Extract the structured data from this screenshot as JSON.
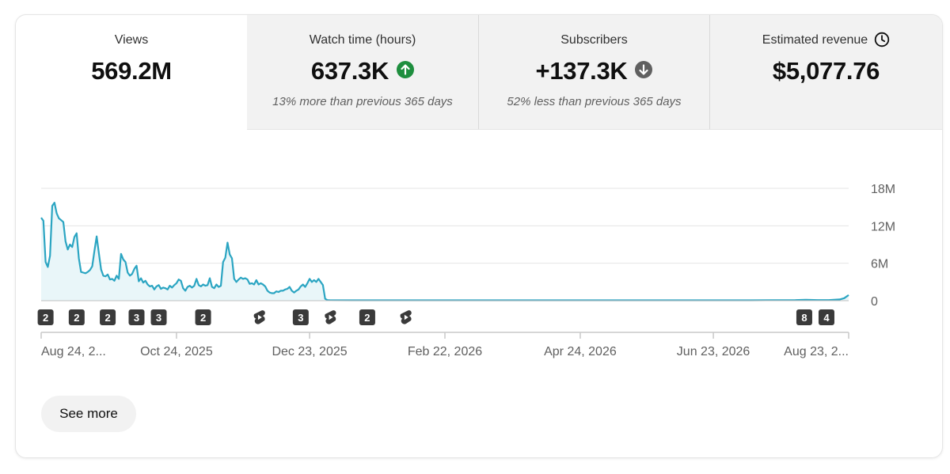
{
  "tabs": [
    {
      "label": "Views",
      "value": "569.2M",
      "subtext": "",
      "active": true
    },
    {
      "label": "Watch time (hours)",
      "value": "637.3K",
      "trend": "up",
      "subtext": "13% more than previous 365 days",
      "active": false
    },
    {
      "label": "Subscribers",
      "value": "+137.3K",
      "trend": "down",
      "subtext": "52% less than previous 365 days",
      "active": false
    },
    {
      "label": "Estimated revenue",
      "value": "$5,077.76",
      "subtext": "",
      "icon": "clock-icon",
      "active": false
    }
  ],
  "colors": {
    "line": "#2ba5c2",
    "area": "#e9f6f9",
    "trend_up": "#1e8e3e",
    "trend_down": "#606060",
    "marker_bg": "#3a3a3a",
    "grid": "#e5e5e5",
    "axis": "#c8c8c8",
    "axis_text": "#606060"
  },
  "chart_data": {
    "type": "area",
    "metric": "Views",
    "y_ticks": [
      "18M",
      "12M",
      "6M",
      "0"
    ],
    "y_tick_values": [
      18,
      12,
      6,
      0
    ],
    "ylim": [
      0,
      18
    ],
    "y_unit": "M",
    "x_tick_labels": [
      "Aug 24, 2...",
      "Oct 24, 2025",
      "Dec 23, 2025",
      "Feb 22, 2026",
      "Apr 24, 2026",
      "Jun 23, 2026",
      "Aug 23, 2..."
    ],
    "x_range_days": [
      0,
      364
    ],
    "x_tick_days": [
      0,
      61,
      121,
      182,
      243,
      303,
      364
    ],
    "series": [
      {
        "x": [
          0,
          1,
          2,
          3,
          4,
          5,
          6,
          7,
          8,
          9,
          10,
          11,
          12,
          13,
          14,
          15,
          16,
          17,
          18,
          19,
          20,
          21,
          22,
          23,
          24,
          25,
          26,
          27,
          28,
          29,
          30,
          31,
          32,
          33,
          34,
          35,
          36,
          37,
          38,
          39,
          40,
          41,
          42,
          43,
          44,
          45,
          46,
          47,
          48,
          49,
          50,
          51,
          52,
          53,
          54,
          55,
          56,
          57,
          58,
          59,
          60,
          61,
          62,
          63,
          64,
          65,
          66,
          67,
          68,
          69,
          70,
          71,
          72,
          73,
          74,
          75,
          76,
          77,
          78,
          79,
          80,
          81,
          82,
          83,
          84,
          85,
          86,
          87,
          88,
          89,
          90,
          91,
          92,
          93,
          94,
          95,
          96,
          97,
          98,
          99,
          100,
          101,
          102,
          103,
          104,
          105,
          106,
          107,
          108,
          109,
          110,
          111,
          112,
          113,
          114,
          115,
          116,
          117,
          118,
          119,
          120,
          121,
          122,
          123,
          124,
          125,
          126,
          127,
          128,
          129,
          130,
          140,
          160,
          180,
          200,
          220,
          240,
          260,
          280,
          300,
          320,
          340,
          345,
          350,
          355,
          360,
          362,
          364
        ],
        "y": [
          13.3,
          12.8,
          6.2,
          5.4,
          7.2,
          15.2,
          15.7,
          14.0,
          13.2,
          12.9,
          12.6,
          9.5,
          8.2,
          9.0,
          8.6,
          10.2,
          10.8,
          6.8,
          4.6,
          4.5,
          4.4,
          4.6,
          4.9,
          5.5,
          8.0,
          10.3,
          7.6,
          5.0,
          4.0,
          3.9,
          4.2,
          3.4,
          3.5,
          3.2,
          4.0,
          3.5,
          7.5,
          6.6,
          6.2,
          4.5,
          4.0,
          4.3,
          5.1,
          5.6,
          3.1,
          3.6,
          2.9,
          3.2,
          2.6,
          2.3,
          2.4,
          1.8,
          2.3,
          2.5,
          1.9,
          2.1,
          2.0,
          1.8,
          2.4,
          2.1,
          2.5,
          2.8,
          3.4,
          3.2,
          2.0,
          1.6,
          2.2,
          2.4,
          2.1,
          2.4,
          3.5,
          2.5,
          2.3,
          2.6,
          2.4,
          2.5,
          3.6,
          2.2,
          2.0,
          2.6,
          2.2,
          2.4,
          6.2,
          6.9,
          9.3,
          7.4,
          6.8,
          3.5,
          3.0,
          3.4,
          3.7,
          3.5,
          3.6,
          3.4,
          2.7,
          2.8,
          2.6,
          3.3,
          2.6,
          2.8,
          2.6,
          2.3,
          1.6,
          1.3,
          1.2,
          1.2,
          1.5,
          1.4,
          1.6,
          1.6,
          1.8,
          1.9,
          2.2,
          1.6,
          1.3,
          1.6,
          1.8,
          2.3,
          2.6,
          2.2,
          2.8,
          3.5,
          3.0,
          3.3,
          3.0,
          3.5,
          3.0,
          2.5,
          0.3,
          0.1,
          0.08,
          0.06,
          0.06,
          0.06,
          0.06,
          0.06,
          0.06,
          0.06,
          0.06,
          0.06,
          0.06,
          0.1,
          0.15,
          0.1,
          0.1,
          0.2,
          0.4,
          0.9
        ]
      }
    ],
    "markers": [
      {
        "day": 2,
        "label": "2",
        "kind": "count"
      },
      {
        "day": 16,
        "label": "2",
        "kind": "count"
      },
      {
        "day": 30,
        "label": "2",
        "kind": "count"
      },
      {
        "day": 43,
        "label": "3",
        "kind": "count"
      },
      {
        "day": 53,
        "label": "3",
        "kind": "count"
      },
      {
        "day": 73,
        "label": "2",
        "kind": "count"
      },
      {
        "day": 98,
        "label": "",
        "kind": "shorts"
      },
      {
        "day": 117,
        "label": "3",
        "kind": "count"
      },
      {
        "day": 130,
        "label": "",
        "kind": "shorts"
      },
      {
        "day": 147,
        "label": "2",
        "kind": "count"
      },
      {
        "day": 164,
        "label": "",
        "kind": "shorts"
      },
      {
        "day": 344,
        "label": "8",
        "kind": "count"
      },
      {
        "day": 354,
        "label": "4",
        "kind": "count"
      }
    ]
  },
  "see_more_label": "See more"
}
